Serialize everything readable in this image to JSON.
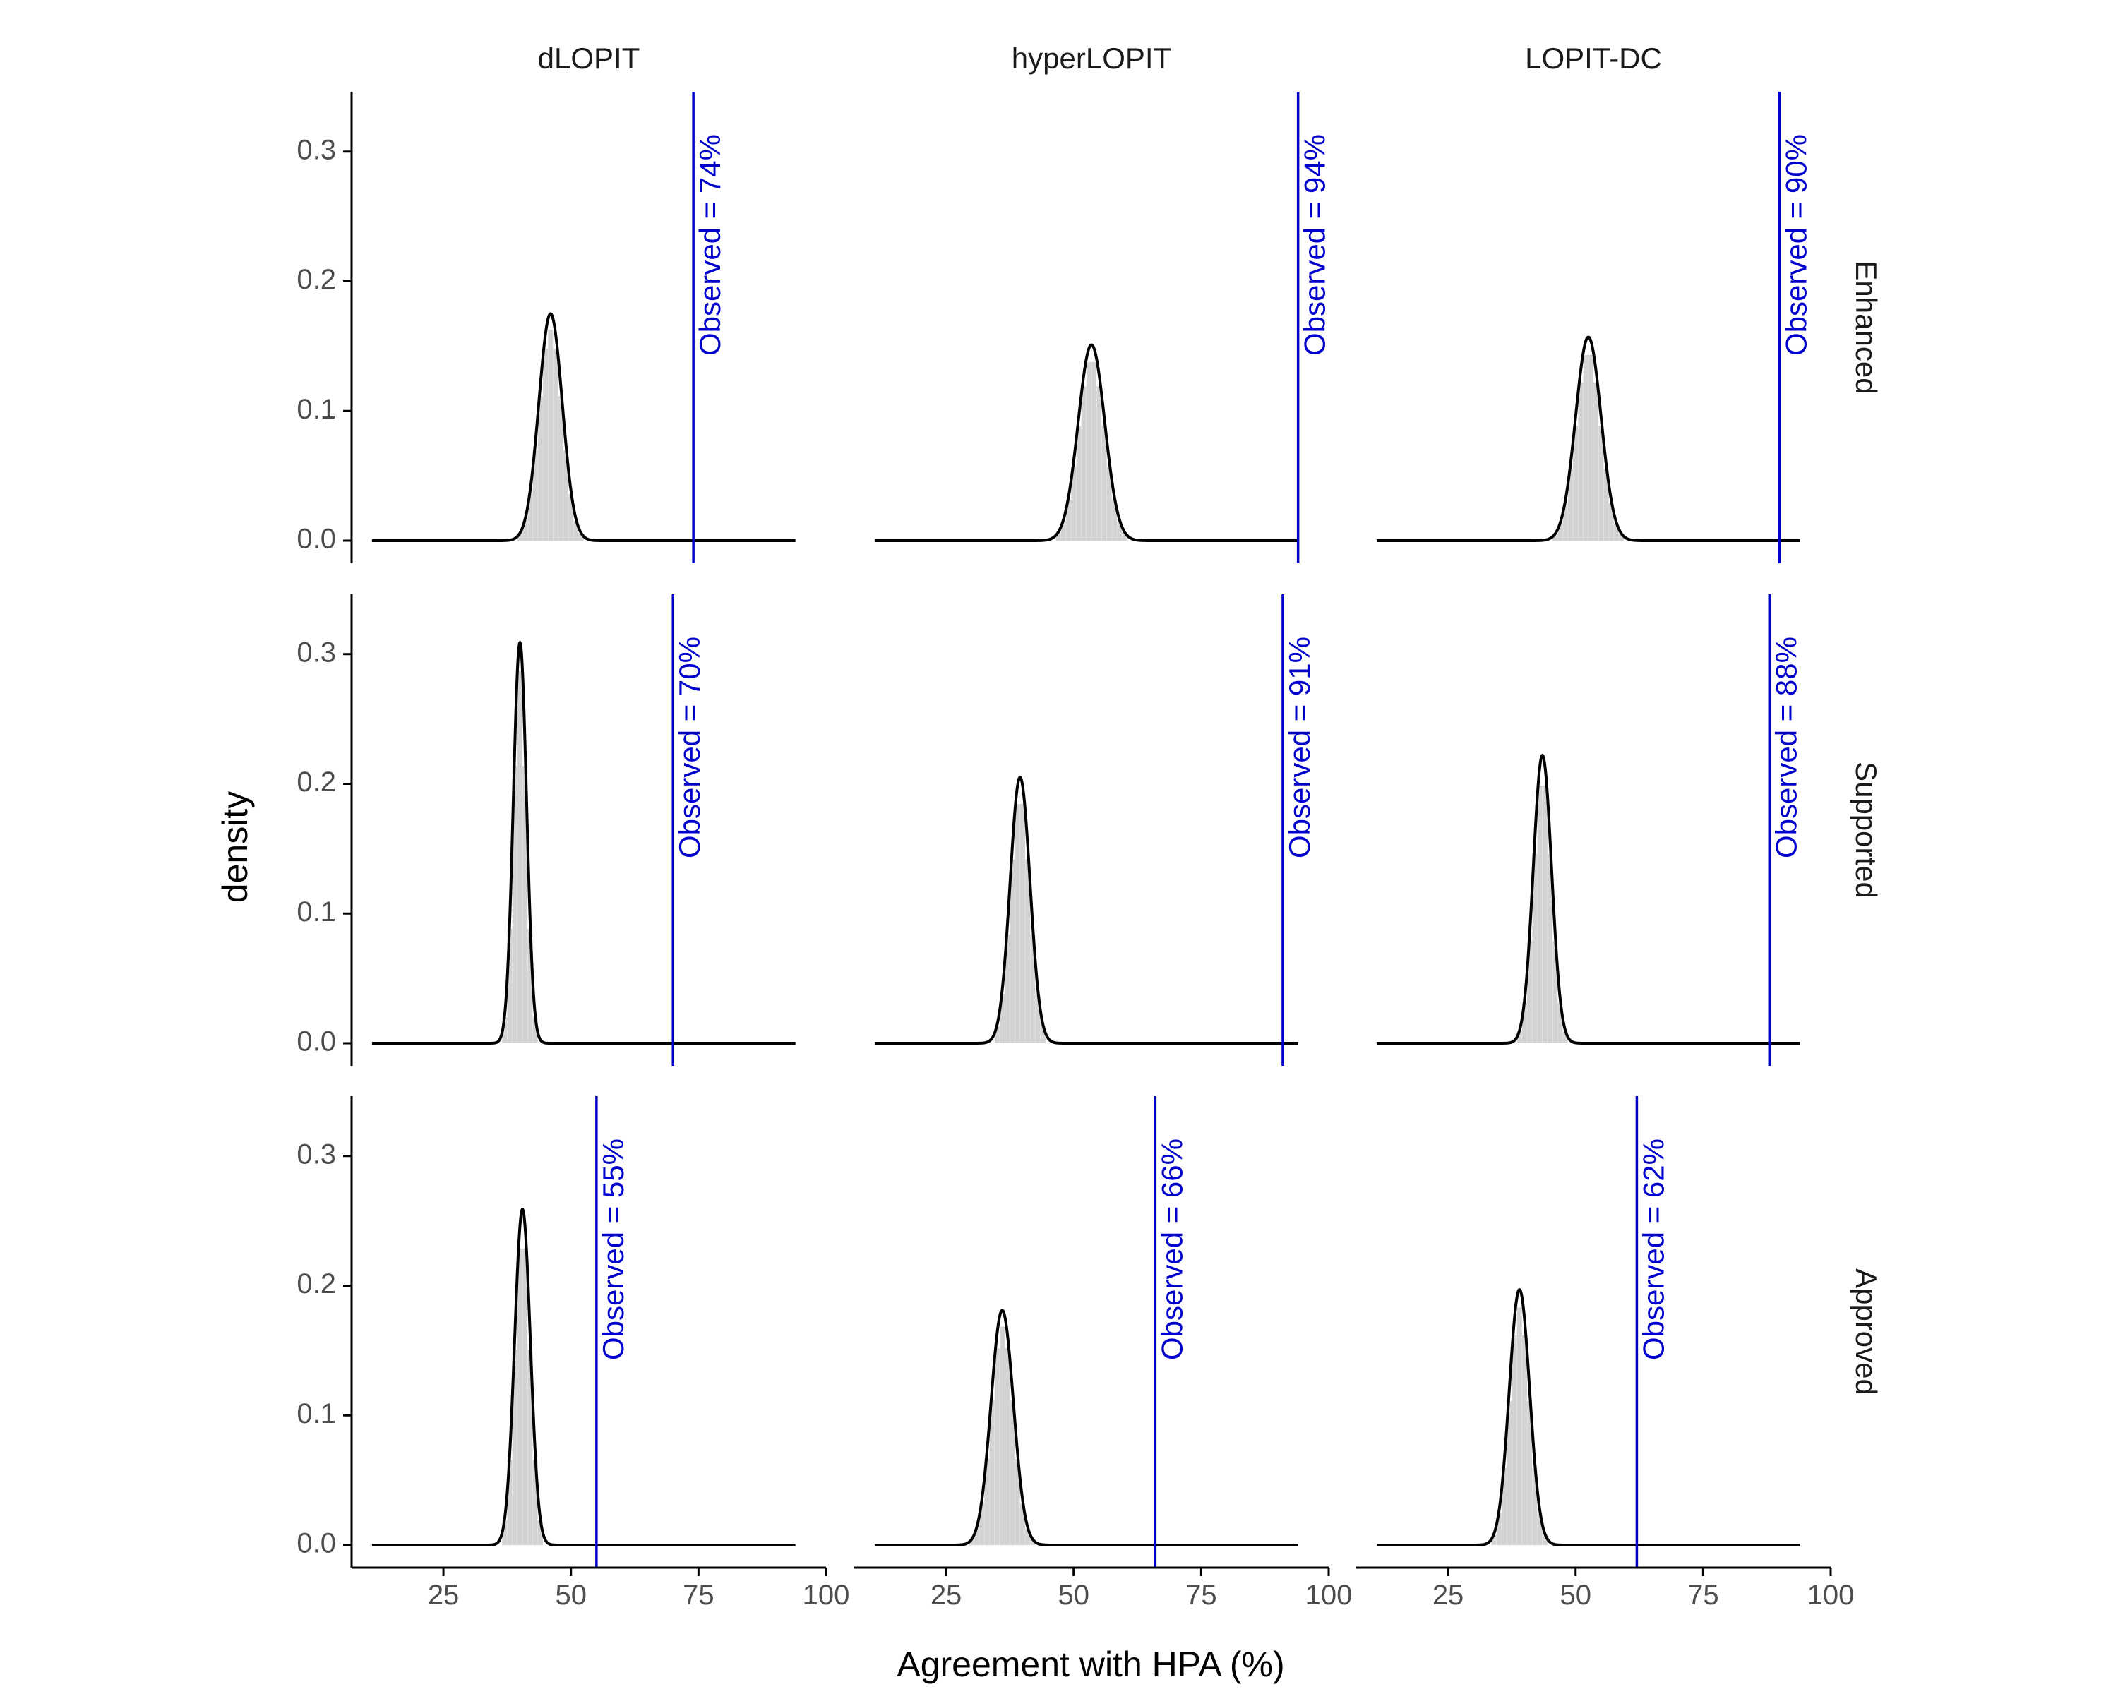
{
  "chart_data": {
    "type": "area",
    "xlabel": "Agreement with HPA (%)",
    "ylabel": "density",
    "xlim": [
      7,
      100
    ],
    "ylim": [
      0,
      0.32
    ],
    "xticks": [
      25,
      50,
      75,
      100
    ],
    "yticks": [
      0.0,
      0.1,
      0.2,
      0.3
    ],
    "ytick_labels": [
      "0.0",
      "0.1",
      "0.2",
      "0.3"
    ],
    "grid": false,
    "legend": "none",
    "colors": {
      "density_line": "#000000",
      "histogram_bars": "#d3d3d3",
      "observed_line": "#0000cc",
      "axis": "#000000",
      "tick_label": "#4d4d4d"
    },
    "columns": [
      "dLOPIT",
      "hyperLOPIT",
      "LOPIT-DC"
    ],
    "rows": [
      "Enhanced",
      "Supported",
      "Approved"
    ],
    "panels": [
      {
        "row": "Enhanced",
        "column": "dLOPIT",
        "mean": 46,
        "sd": 2.3,
        "peak": 0.175,
        "observed": 74,
        "observed_label": "Observed = 74%",
        "range": [
          11,
          94
        ]
      },
      {
        "row": "Enhanced",
        "column": "hyperLOPIT",
        "mean": 53.5,
        "sd": 2.6,
        "peak": 0.151,
        "observed": 94,
        "observed_label": "Observed = 94%",
        "range": [
          11,
          94
        ]
      },
      {
        "row": "Enhanced",
        "column": "LOPIT-DC",
        "mean": 52.5,
        "sd": 2.5,
        "peak": 0.157,
        "observed": 90,
        "observed_label": "Observed = 90%",
        "range": [
          11,
          94
        ]
      },
      {
        "row": "Supported",
        "column": "dLOPIT",
        "mean": 40,
        "sd": 1.3,
        "peak": 0.309,
        "observed": 70,
        "observed_label": "Observed = 70%",
        "range": [
          11,
          94
        ]
      },
      {
        "row": "Supported",
        "column": "hyperLOPIT",
        "mean": 39.5,
        "sd": 1.95,
        "peak": 0.205,
        "observed": 91,
        "observed_label": "Observed = 91%",
        "range": [
          11,
          94
        ]
      },
      {
        "row": "Supported",
        "column": "LOPIT-DC",
        "mean": 43.5,
        "sd": 1.8,
        "peak": 0.222,
        "observed": 88,
        "observed_label": "Observed = 88%",
        "range": [
          11,
          94
        ]
      },
      {
        "row": "Approved",
        "column": "dLOPIT",
        "mean": 40.5,
        "sd": 1.55,
        "peak": 0.259,
        "observed": 55,
        "observed_label": "Observed = 55%",
        "range": [
          11,
          94
        ]
      },
      {
        "row": "Approved",
        "column": "hyperLOPIT",
        "mean": 36,
        "sd": 2.2,
        "peak": 0.181,
        "observed": 66,
        "observed_label": "Observed = 66%",
        "range": [
          11,
          94
        ]
      },
      {
        "row": "Approved",
        "column": "LOPIT-DC",
        "mean": 39,
        "sd": 2.0,
        "peak": 0.197,
        "observed": 62,
        "observed_label": "Observed = 62%",
        "range": [
          11,
          94
        ]
      }
    ]
  }
}
